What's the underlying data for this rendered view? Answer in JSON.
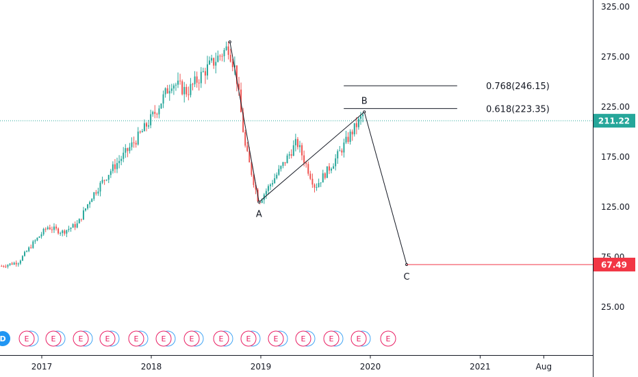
{
  "chart_data": {
    "type": "candlestick",
    "title": "",
    "xlabel": "",
    "ylabel": "",
    "ylim": [
      0,
      330
    ],
    "xlim": [
      "2016-08-20",
      "2021-12-01"
    ],
    "y_ticks": [
      "325.00",
      "275.00",
      "225.00",
      "175.00",
      "125.00",
      "75.00",
      "25.00"
    ],
    "y_tick_values": [
      325,
      275,
      225,
      175,
      125,
      75,
      25
    ],
    "x_ticks": [
      {
        "label": "2017",
        "date": "2017-01-01"
      },
      {
        "label": "2018",
        "date": "2018-01-01"
      },
      {
        "label": "2019",
        "date": "2019-01-01"
      },
      {
        "label": "2020",
        "date": "2020-01-01"
      },
      {
        "label": "2021",
        "date": "2021-01-01"
      },
      {
        "label": "Aug",
        "date": "2021-08-01"
      }
    ],
    "price_path": [
      {
        "date": "2016-08-20",
        "value": 66
      },
      {
        "date": "2016-10-15",
        "value": 70
      },
      {
        "date": "2016-12-01",
        "value": 88
      },
      {
        "date": "2017-01-20",
        "value": 105
      },
      {
        "date": "2017-03-10",
        "value": 100
      },
      {
        "date": "2017-05-01",
        "value": 108
      },
      {
        "date": "2017-06-15",
        "value": 135
      },
      {
        "date": "2017-08-15",
        "value": 160
      },
      {
        "date": "2017-10-10",
        "value": 180
      },
      {
        "date": "2017-12-01",
        "value": 200
      },
      {
        "date": "2018-01-15",
        "value": 220
      },
      {
        "date": "2018-03-10",
        "value": 250
      },
      {
        "date": "2018-05-01",
        "value": 240
      },
      {
        "date": "2018-07-01",
        "value": 262
      },
      {
        "date": "2018-09-15",
        "value": 285
      },
      {
        "date": "2018-10-10",
        "value": 260
      },
      {
        "date": "2018-11-10",
        "value": 185
      },
      {
        "date": "2018-12-25",
        "value": 130
      },
      {
        "date": "2019-03-01",
        "value": 160
      },
      {
        "date": "2019-05-01",
        "value": 190
      },
      {
        "date": "2019-07-01",
        "value": 145
      },
      {
        "date": "2019-09-01",
        "value": 170
      },
      {
        "date": "2019-11-01",
        "value": 200
      },
      {
        "date": "2019-12-10",
        "value": 218
      }
    ],
    "wave_points": [
      {
        "label": "",
        "date": "2018-09-20",
        "value": 290
      },
      {
        "label": "A",
        "date": "2018-12-26",
        "value": 130
      },
      {
        "label": "B",
        "date": "2019-12-12",
        "value": 220
      },
      {
        "label": "C",
        "date": "2020-05-01",
        "value": 67.49
      }
    ],
    "fib_levels": [
      {
        "label": "0.768(246.15)",
        "value": 246.15,
        "from": "2019-06-01",
        "to": "2020-12-01"
      },
      {
        "label": "0.618(223.35)",
        "value": 223.35,
        "from": "2019-06-01",
        "to": "2020-12-01"
      }
    ],
    "current_price": {
      "label": "211.22",
      "value": 211.22,
      "color": "#26a69a"
    },
    "target_price": {
      "label": "67.49",
      "value": 67.49,
      "color": "#f23645"
    },
    "events": [
      "D",
      "E",
      "E",
      "E",
      "E",
      "E",
      "E",
      "E",
      "E",
      "E",
      "E",
      "E",
      "E",
      "E",
      "E"
    ],
    "colors": {
      "up": "#26a69a",
      "down": "#ef5350",
      "event": "#e91e63",
      "dividend": "#2196f3"
    }
  }
}
